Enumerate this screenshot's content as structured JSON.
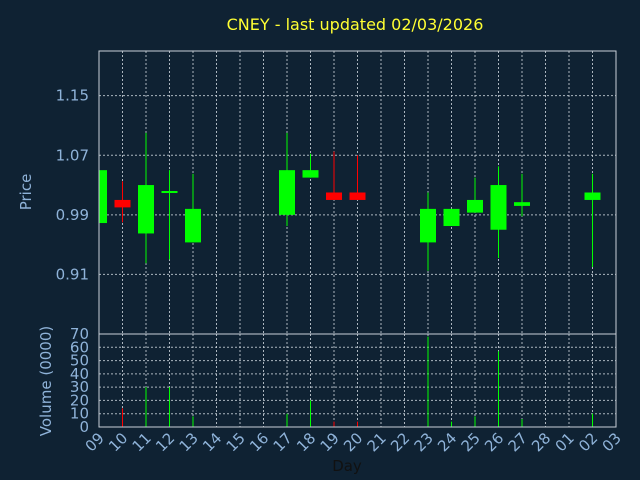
{
  "chart_data": {
    "type": "candlestick",
    "title": "CNEY - last updated 02/03/2026",
    "xlabel": "Day",
    "ylabel_price": "Price",
    "ylabel_volume": "Volume (0000)",
    "price_ylim": [
      0.83,
      1.21
    ],
    "price_yticks": [
      0.91,
      0.99,
      1.07,
      1.15
    ],
    "volume_ylim": [
      0,
      70
    ],
    "volume_yticks": [
      0,
      10,
      20,
      30,
      40,
      50,
      60,
      70
    ],
    "x_tick_labels": [
      "09",
      "10",
      "11",
      "12",
      "13",
      "14",
      "15",
      "16",
      "17",
      "18",
      "19",
      "20",
      "21",
      "22",
      "23",
      "24",
      "25",
      "26",
      "27",
      "28",
      "01",
      "02",
      "03"
    ],
    "grid": true,
    "up_color": "#00ff00",
    "down_color": "#ff0000",
    "candles": [
      {
        "x": "09",
        "open": 0.979,
        "high": 1.05,
        "low": 0.979,
        "close": 1.05,
        "volume": 0
      },
      {
        "x": "10",
        "open": 1.01,
        "high": 1.035,
        "low": 0.98,
        "close": 1.0,
        "volume": 14
      },
      {
        "x": "11",
        "open": 0.965,
        "high": 1.1,
        "low": 0.925,
        "close": 1.03,
        "volume": 30
      },
      {
        "x": "12",
        "open": 1.02,
        "high": 1.05,
        "low": 0.93,
        "close": 1.022,
        "volume": 30
      },
      {
        "x": "13",
        "open": 0.953,
        "high": 1.045,
        "low": 0.953,
        "close": 0.998,
        "volume": 8
      },
      {
        "x": "17",
        "open": 0.99,
        "high": 1.1,
        "low": 0.975,
        "close": 1.05,
        "volume": 10
      },
      {
        "x": "18",
        "open": 1.04,
        "high": 1.072,
        "low": 1.04,
        "close": 1.05,
        "volume": 20
      },
      {
        "x": "19",
        "open": 1.02,
        "high": 1.075,
        "low": 1.01,
        "close": 1.01,
        "volume": 4
      },
      {
        "x": "20",
        "open": 1.02,
        "high": 1.07,
        "low": 1.01,
        "close": 1.01,
        "volume": 4
      },
      {
        "x": "23",
        "open": 0.953,
        "high": 1.02,
        "low": 0.915,
        "close": 0.998,
        "volume": 68
      },
      {
        "x": "24",
        "open": 0.975,
        "high": 0.998,
        "low": 0.975,
        "close": 0.998,
        "volume": 4
      },
      {
        "x": "25",
        "open": 0.993,
        "high": 1.04,
        "low": 0.993,
        "close": 1.01,
        "volume": 8
      },
      {
        "x": "26",
        "open": 0.97,
        "high": 1.055,
        "low": 0.932,
        "close": 1.03,
        "volume": 57
      },
      {
        "x": "27",
        "open": 1.002,
        "high": 1.045,
        "low": 0.988,
        "close": 1.007,
        "volume": 6
      },
      {
        "x": "02",
        "open": 1.01,
        "high": 1.045,
        "low": 0.92,
        "close": 1.02,
        "volume": 10
      }
    ]
  }
}
